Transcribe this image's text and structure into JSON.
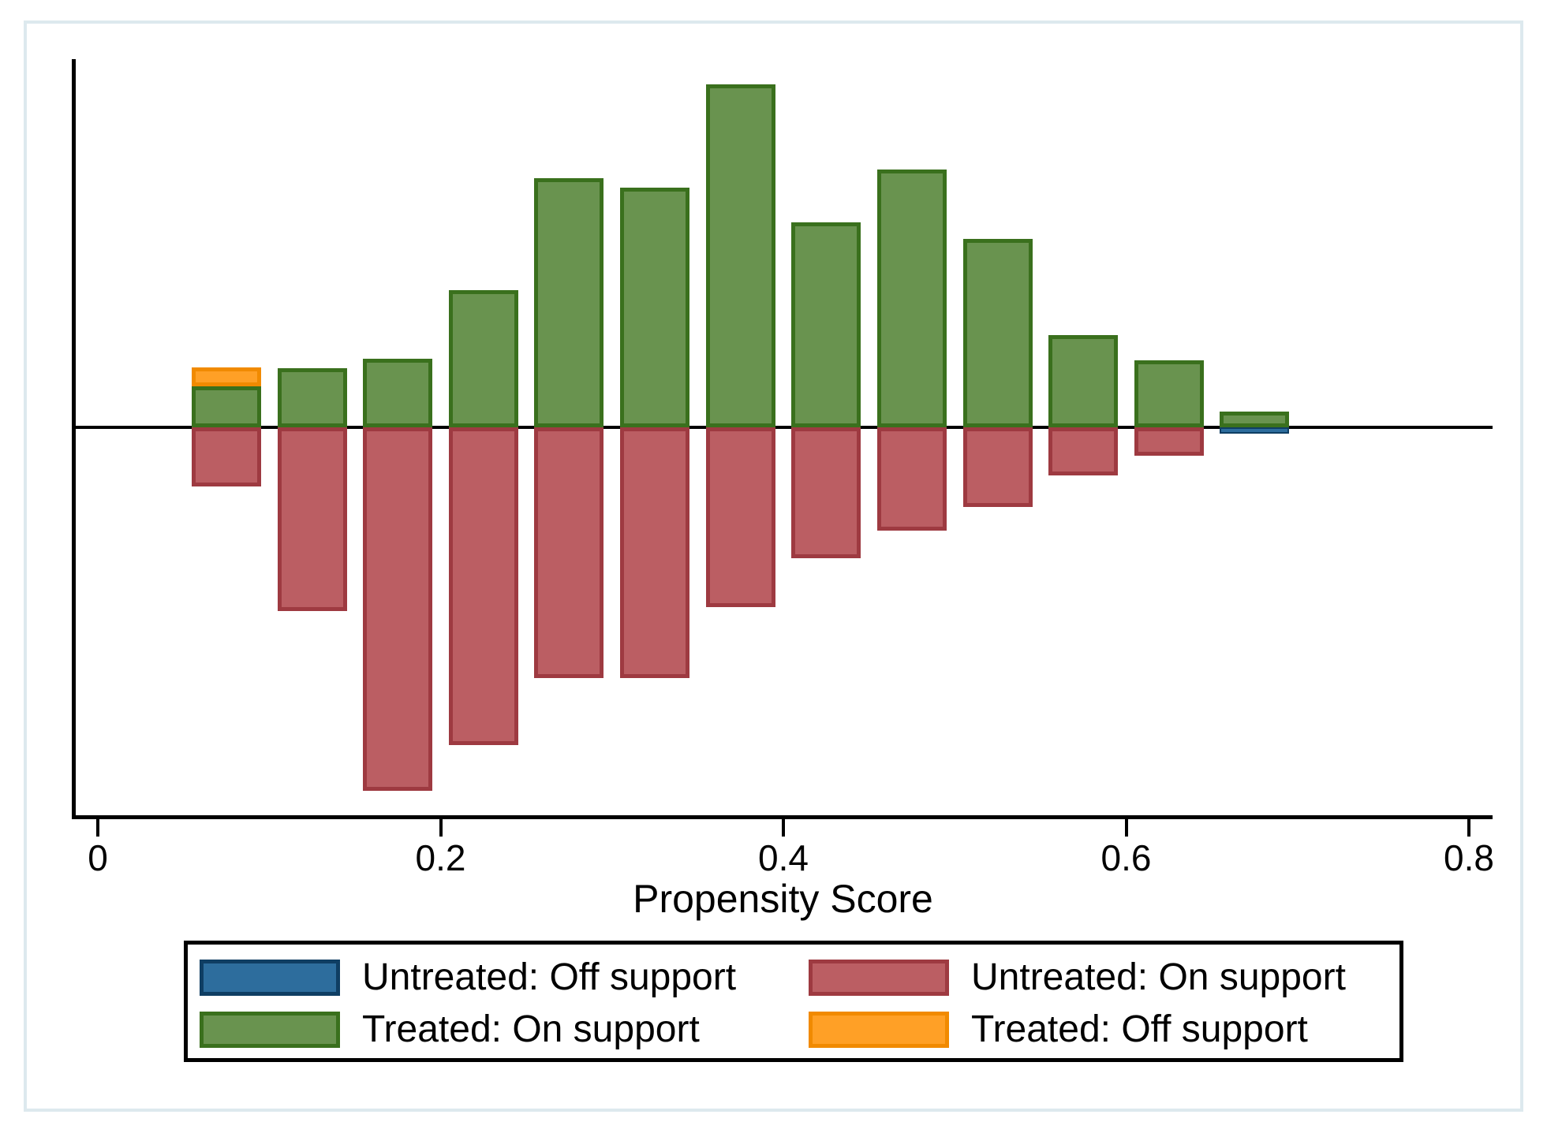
{
  "figure": {
    "x_axis": {
      "title": "Propensity Score",
      "tick_labels": [
        "0",
        "0.2",
        "0.4",
        "0.6",
        "0.8"
      ],
      "tick_values": [
        0,
        0.2,
        0.4,
        0.6,
        0.8
      ]
    },
    "legend": {
      "items": [
        {
          "key": "untreated_off",
          "label": "Untreated: Off support",
          "fill": "#2d6d9d",
          "border": "#0f3e63"
        },
        {
          "key": "untreated_on",
          "label": "Untreated: On support",
          "fill": "#bb5e63",
          "border": "#9e3a41"
        },
        {
          "key": "treated_on",
          "label": "Treated: On support",
          "fill": "#69934f",
          "border": "#3a701d"
        },
        {
          "key": "treated_off",
          "label": "Treated: Off support",
          "fill": "#ffa026",
          "border": "#f18a00"
        }
      ]
    },
    "colors": {
      "axis": "#000000",
      "frame_border": "#dde9ee",
      "background": "#ffffff"
    }
  },
  "chart_data": {
    "type": "bar",
    "variant": "mirrored_histogram",
    "title": "",
    "xlabel": "Propensity Score",
    "ylabel": "",
    "x_ticks": [
      0,
      0.2,
      0.4,
      0.6,
      0.8
    ],
    "xlim": [
      0,
      0.828
    ],
    "bin_width": 0.05,
    "bar_draw_width": 0.0405,
    "bin_centers": [
      0.075,
      0.125,
      0.175,
      0.225,
      0.275,
      0.325,
      0.375,
      0.425,
      0.475,
      0.525,
      0.575,
      0.625,
      0.675
    ],
    "y_units": "relative frequency (no y-axis labels shown); treated plotted upward, untreated plotted downward from the zero line",
    "series": [
      {
        "name": "Treated: On support",
        "key": "treated_on",
        "direction": "up",
        "values": [
          0.0207,
          0.0298,
          0.0346,
          0.0692,
          0.1256,
          0.1209,
          0.173,
          0.1034,
          0.13,
          0.095,
          0.0465,
          0.0338,
          0.008
        ]
      },
      {
        "name": "Treated: Off support",
        "key": "treated_off",
        "direction": "up",
        "stacked_on": "treated_on",
        "values": [
          0.0095,
          0,
          0,
          0,
          0,
          0,
          0,
          0,
          0,
          0,
          0,
          0,
          0
        ]
      },
      {
        "name": "Untreated: On support",
        "key": "untreated_on",
        "direction": "down",
        "values": [
          0.0298,
          0.0926,
          0.1833,
          0.1602,
          0.1264,
          0.1264,
          0.0907,
          0.066,
          0.0521,
          0.0402,
          0.0243,
          0.0143,
          0
        ]
      },
      {
        "name": "Untreated: Off support",
        "key": "untreated_off",
        "direction": "down",
        "values": [
          0,
          0,
          0,
          0,
          0,
          0,
          0,
          0,
          0,
          0,
          0,
          0,
          0.0028
        ]
      }
    ],
    "legend_position": "bottom"
  }
}
